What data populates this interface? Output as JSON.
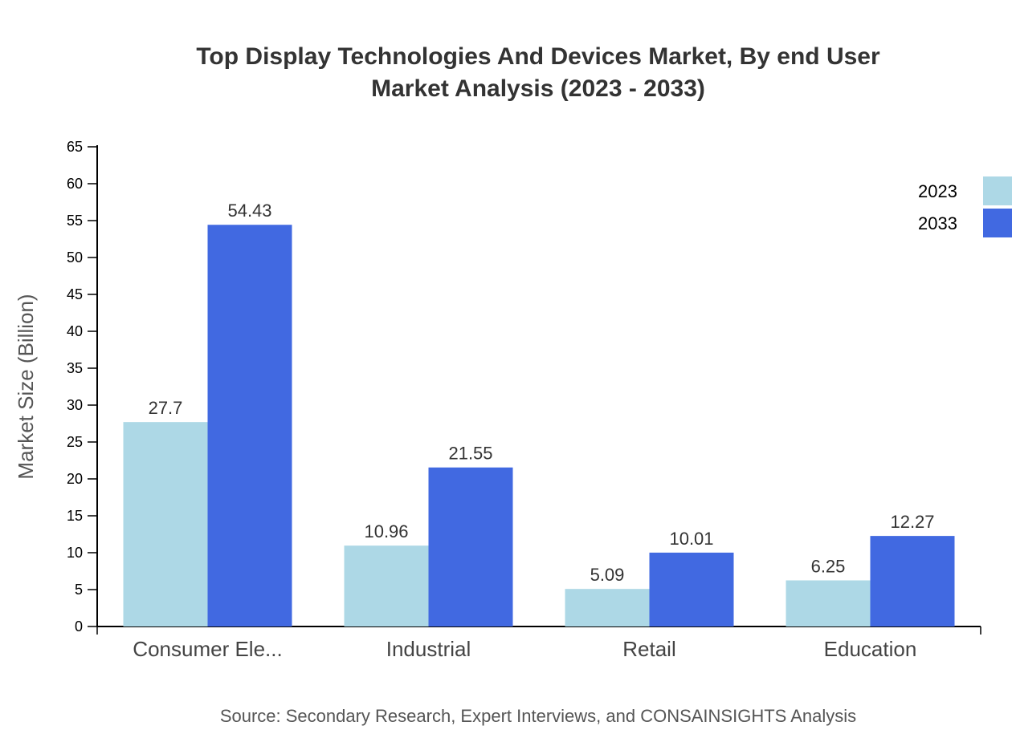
{
  "chart_data": {
    "type": "bar",
    "title": [
      "Top Display Technologies And Devices Market, By end User",
      "Market Analysis (2023 - 2033)"
    ],
    "xlabel": "",
    "ylabel": "Market Size (Billion)",
    "ylim": [
      0,
      65
    ],
    "yticks": [
      0,
      5,
      10,
      15,
      20,
      25,
      30,
      35,
      40,
      45,
      50,
      55,
      60,
      65
    ],
    "categories": [
      "Consumer Ele...",
      "Industrial",
      "Retail",
      "Education"
    ],
    "series": [
      {
        "name": "2023",
        "color": "#ADD8E6",
        "values": [
          27.7,
          10.96,
          5.09,
          6.25
        ]
      },
      {
        "name": "2033",
        "color": "#4169E1",
        "values": [
          54.43,
          21.55,
          10.01,
          12.27
        ]
      }
    ],
    "grid": false,
    "legend": "top-right",
    "source": "Source: Secondary Research, Expert Interviews, and CONSAINSIGHTS Analysis"
  }
}
